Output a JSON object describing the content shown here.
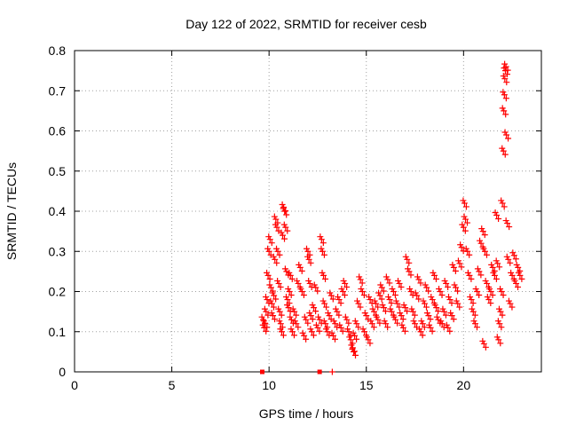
{
  "chart_data": {
    "type": "scatter",
    "title": "Day 122 of 2022, SRMTID for receiver cesb",
    "xlabel": "GPS time / hours",
    "ylabel": "SRMTID / TECUs",
    "xlim": [
      0,
      24
    ],
    "ylim": [
      0,
      0.8
    ],
    "grid": true,
    "x_ticks": [
      0,
      5,
      10,
      15,
      20
    ],
    "x_tick_labels": [
      "0",
      "5",
      "10",
      "15",
      "20"
    ],
    "y_ticks": [
      0,
      0.1,
      0.2,
      0.3,
      0.4,
      0.5,
      0.6,
      0.7,
      0.8
    ],
    "y_tick_labels": [
      "0",
      "0.1",
      "0.2",
      "0.3",
      "0.4",
      "0.5",
      "0.6",
      "0.7",
      "0.8"
    ],
    "marker_color": "#ff0000",
    "series": [
      {
        "name": "SRMTID",
        "marker": "plus",
        "points": [
          [
            9.7,
            0.13
          ],
          [
            9.75,
            0.11
          ],
          [
            9.8,
            0.12
          ],
          [
            9.85,
            0.15
          ],
          [
            9.9,
            0.18
          ],
          [
            9.95,
            0.24
          ],
          [
            10.0,
            0.3
          ],
          [
            10.05,
            0.33
          ],
          [
            10.1,
            0.21
          ],
          [
            10.15,
            0.17
          ],
          [
            10.2,
            0.14
          ],
          [
            10.25,
            0.19
          ],
          [
            10.3,
            0.28
          ],
          [
            10.35,
            0.38
          ],
          [
            10.4,
            0.36
          ],
          [
            10.45,
            0.3
          ],
          [
            10.5,
            0.22
          ],
          [
            10.55,
            0.15
          ],
          [
            10.6,
            0.12
          ],
          [
            10.65,
            0.1
          ],
          [
            10.7,
            0.34
          ],
          [
            10.75,
            0.41
          ],
          [
            10.8,
            0.4
          ],
          [
            10.85,
            0.36
          ],
          [
            10.9,
            0.25
          ],
          [
            10.95,
            0.18
          ],
          [
            11.0,
            0.16
          ],
          [
            11.05,
            0.2
          ],
          [
            11.1,
            0.24
          ],
          [
            11.15,
            0.13
          ],
          [
            11.2,
            0.1
          ],
          [
            11.3,
            0.15
          ],
          [
            11.4,
            0.12
          ],
          [
            11.5,
            0.22
          ],
          [
            11.6,
            0.26
          ],
          [
            11.7,
            0.2
          ],
          [
            11.8,
            0.09
          ],
          [
            11.9,
            0.13
          ],
          [
            12.0,
            0.3
          ],
          [
            12.05,
            0.28
          ],
          [
            12.1,
            0.22
          ],
          [
            12.15,
            0.14
          ],
          [
            12.2,
            0.1
          ],
          [
            12.3,
            0.16
          ],
          [
            12.4,
            0.21
          ],
          [
            12.5,
            0.11
          ],
          [
            12.6,
            0.13
          ],
          [
            12.7,
            0.33
          ],
          [
            12.75,
            0.3
          ],
          [
            12.8,
            0.24
          ],
          [
            12.85,
            0.17
          ],
          [
            12.9,
            0.12
          ],
          [
            13.0,
            0.1
          ],
          [
            13.1,
            0.14
          ],
          [
            13.2,
            0.19
          ],
          [
            13.3,
            0.09
          ],
          [
            13.4,
            0.12
          ],
          [
            13.5,
            0.15
          ],
          [
            13.6,
            0.18
          ],
          [
            13.7,
            0.11
          ],
          [
            13.8,
            0.2
          ],
          [
            13.9,
            0.22
          ],
          [
            14.0,
            0.13
          ],
          [
            14.1,
            0.1
          ],
          [
            14.2,
            0.08
          ],
          [
            14.3,
            0.06
          ],
          [
            14.35,
            0.05
          ],
          [
            14.4,
            0.09
          ],
          [
            14.5,
            0.12
          ],
          [
            14.6,
            0.17
          ],
          [
            14.7,
            0.23
          ],
          [
            14.8,
            0.2
          ],
          [
            14.9,
            0.1
          ],
          [
            15.0,
            0.14
          ],
          [
            15.1,
            0.08
          ],
          [
            15.2,
            0.18
          ],
          [
            15.3,
            0.12
          ],
          [
            15.4,
            0.15
          ],
          [
            15.5,
            0.17
          ],
          [
            15.6,
            0.13
          ],
          [
            15.7,
            0.19
          ],
          [
            15.8,
            0.21
          ],
          [
            15.9,
            0.16
          ],
          [
            16.0,
            0.12
          ],
          [
            16.1,
            0.23
          ],
          [
            16.2,
            0.18
          ],
          [
            16.3,
            0.15
          ],
          [
            16.4,
            0.2
          ],
          [
            16.5,
            0.13
          ],
          [
            16.6,
            0.17
          ],
          [
            16.7,
            0.22
          ],
          [
            16.8,
            0.14
          ],
          [
            16.9,
            0.11
          ],
          [
            17.0,
            0.16
          ],
          [
            17.1,
            0.28
          ],
          [
            17.2,
            0.25
          ],
          [
            17.3,
            0.2
          ],
          [
            17.4,
            0.15
          ],
          [
            17.5,
            0.12
          ],
          [
            17.6,
            0.19
          ],
          [
            17.7,
            0.23
          ],
          [
            17.8,
            0.1
          ],
          [
            17.9,
            0.12
          ],
          [
            18.0,
            0.17
          ],
          [
            18.1,
            0.21
          ],
          [
            18.2,
            0.14
          ],
          [
            18.3,
            0.11
          ],
          [
            18.4,
            0.18
          ],
          [
            18.5,
            0.24
          ],
          [
            18.6,
            0.16
          ],
          [
            18.7,
            0.13
          ],
          [
            18.8,
            0.2
          ],
          [
            18.9,
            0.12
          ],
          [
            19.0,
            0.15
          ],
          [
            19.1,
            0.22
          ],
          [
            19.2,
            0.11
          ],
          [
            19.3,
            0.18
          ],
          [
            19.4,
            0.14
          ],
          [
            19.5,
            0.26
          ],
          [
            19.6,
            0.21
          ],
          [
            19.7,
            0.17
          ],
          [
            19.8,
            0.27
          ],
          [
            19.9,
            0.31
          ],
          [
            20.0,
            0.36
          ],
          [
            20.05,
            0.42
          ],
          [
            20.1,
            0.38
          ],
          [
            20.2,
            0.3
          ],
          [
            20.3,
            0.24
          ],
          [
            20.4,
            0.18
          ],
          [
            20.5,
            0.15
          ],
          [
            20.6,
            0.12
          ],
          [
            20.7,
            0.2
          ],
          [
            20.8,
            0.25
          ],
          [
            20.9,
            0.32
          ],
          [
            21.0,
            0.35
          ],
          [
            21.05,
            0.07
          ],
          [
            21.1,
            0.3
          ],
          [
            21.2,
            0.22
          ],
          [
            21.3,
            0.18
          ],
          [
            21.4,
            0.2
          ],
          [
            21.5,
            0.26
          ],
          [
            21.6,
            0.24
          ],
          [
            21.7,
            0.39
          ],
          [
            21.75,
            0.27
          ],
          [
            21.8,
            0.08
          ],
          [
            21.85,
            0.12
          ],
          [
            21.9,
            0.15
          ],
          [
            21.95,
            0.2
          ],
          [
            22.0,
            0.42
          ],
          [
            22.05,
            0.55
          ],
          [
            22.07,
            0.65
          ],
          [
            22.1,
            0.69
          ],
          [
            22.12,
            0.73
          ],
          [
            22.15,
            0.75
          ],
          [
            22.18,
            0.76
          ],
          [
            22.2,
            0.59
          ],
          [
            22.25,
            0.37
          ],
          [
            22.3,
            0.28
          ],
          [
            22.4,
            0.17
          ],
          [
            22.5,
            0.24
          ],
          [
            22.6,
            0.29
          ],
          [
            22.7,
            0.22
          ],
          [
            22.8,
            0.26
          ],
          [
            22.9,
            0.24
          ]
        ]
      }
    ],
    "zero_markers": [
      {
        "x": 9.65,
        "marker": "box"
      },
      {
        "x": 12.6,
        "marker": "box"
      },
      {
        "x": 13.25,
        "marker": "plus"
      }
    ]
  }
}
